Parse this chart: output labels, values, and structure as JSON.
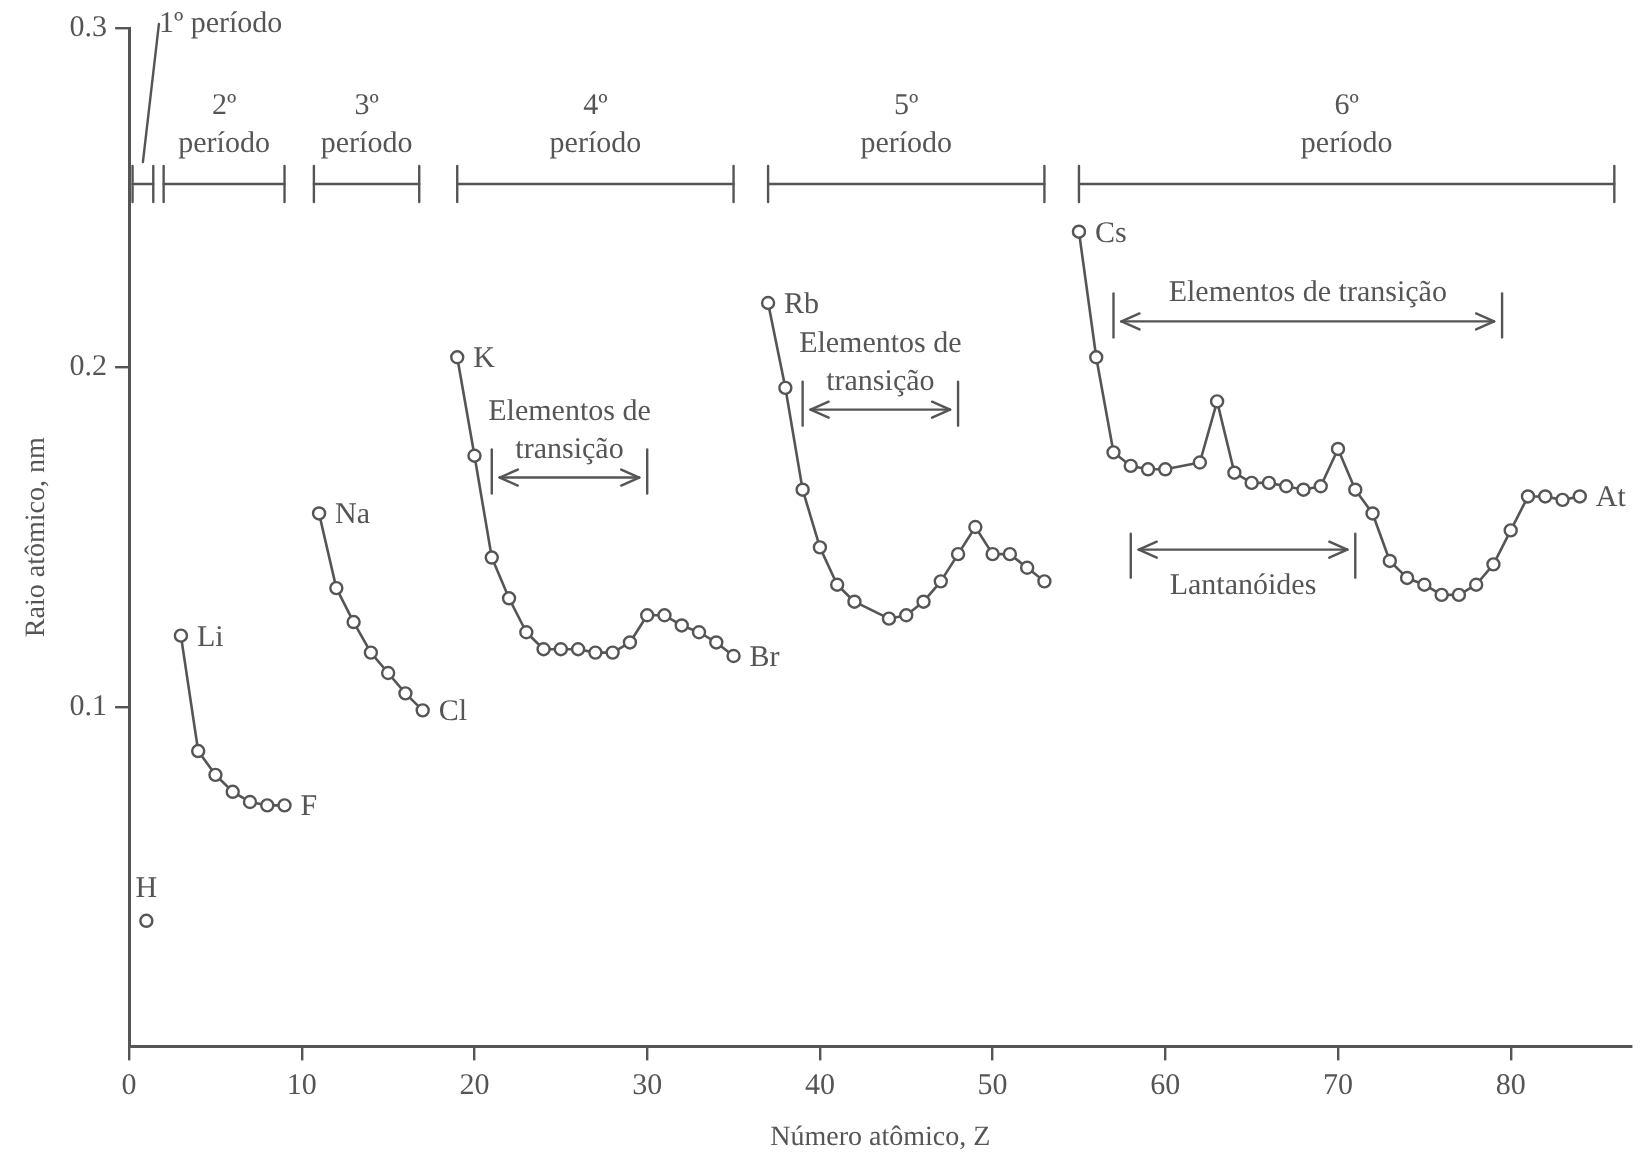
{
  "chart_data": {
    "type": "line",
    "xlabel": "Número atômico, Z",
    "ylabel": "Raio atômico, nm",
    "xlim": [
      0,
      87
    ],
    "xticks": [
      0,
      10,
      20,
      30,
      40,
      50,
      60,
      70,
      80
    ],
    "ylim": [
      0,
      0.3
    ],
    "yticks": [
      0.1,
      0.2,
      0.3
    ],
    "marker": "circle",
    "series": [
      {
        "color": "#555555",
        "x": [
          1
        ],
        "values": [
          0.037
        ]
      },
      {
        "color": "#555555",
        "x": [
          3,
          4,
          5,
          6,
          7,
          8,
          9
        ],
        "values": [
          0.121,
          0.087,
          0.08,
          0.075,
          0.072,
          0.071,
          0.071
        ]
      },
      {
        "color": "#555555",
        "x": [
          11,
          12,
          13,
          14,
          15,
          16,
          17
        ],
        "values": [
          0.157,
          0.135,
          0.125,
          0.116,
          0.11,
          0.104,
          0.099
        ]
      },
      {
        "color": "#555555",
        "x": [
          19,
          20,
          21,
          22,
          23,
          24,
          25,
          26,
          27,
          28,
          29,
          30,
          31,
          32,
          33,
          34,
          35
        ],
        "values": [
          0.203,
          0.174,
          0.144,
          0.132,
          0.122,
          0.117,
          0.117,
          0.117,
          0.116,
          0.116,
          0.119,
          0.127,
          0.127,
          0.124,
          0.122,
          0.119,
          0.115
        ]
      },
      {
        "color": "#555555",
        "x": [
          37,
          38,
          39,
          40,
          41,
          42,
          44,
          45,
          46,
          47,
          48,
          49,
          50,
          51,
          52,
          53
        ],
        "values": [
          0.219,
          0.194,
          0.164,
          0.147,
          0.136,
          0.131,
          0.126,
          0.127,
          0.131,
          0.137,
          0.145,
          0.153,
          0.145,
          0.145,
          0.141,
          0.137
        ]
      },
      {
        "color": "#555555",
        "x": [
          55,
          56,
          57,
          58,
          59,
          60,
          62,
          63,
          64,
          65,
          66,
          67,
          68,
          69,
          70,
          71,
          72,
          73,
          74,
          75,
          76,
          77,
          78,
          79,
          80,
          81,
          82,
          83,
          84
        ],
        "values": [
          0.24,
          0.203,
          0.175,
          0.171,
          0.17,
          0.17,
          0.172,
          0.19,
          0.169,
          0.166,
          0.166,
          0.165,
          0.164,
          0.165,
          0.176,
          0.164,
          0.157,
          0.143,
          0.138,
          0.136,
          0.133,
          0.133,
          0.136,
          0.142,
          0.152,
          0.162,
          0.162,
          0.161,
          0.162
        ]
      }
    ],
    "annotations": [
      "1º período",
      "2º período",
      "3º período",
      "4º período",
      "5º período",
      "6º período",
      "Elementos de transição",
      "Elementos de transição",
      "Elementos de transição",
      "Lantanóides",
      {
        "text": "H",
        "x": 1,
        "y": 0.037
      },
      {
        "text": "Li",
        "x": 3,
        "y": 0.121
      },
      {
        "text": "F",
        "x": 9,
        "y": 0.071
      },
      {
        "text": "Na",
        "x": 11,
        "y": 0.157
      },
      {
        "text": "Cl",
        "x": 17,
        "y": 0.099
      },
      {
        "text": "K",
        "x": 19,
        "y": 0.203
      },
      {
        "text": "Br",
        "x": 35,
        "y": 0.115
      },
      {
        "text": "Rb",
        "x": 37,
        "y": 0.219
      },
      {
        "text": "Cs",
        "x": 55,
        "y": 0.24
      },
      {
        "text": "At",
        "x": 84,
        "y": 0.162
      }
    ]
  }
}
